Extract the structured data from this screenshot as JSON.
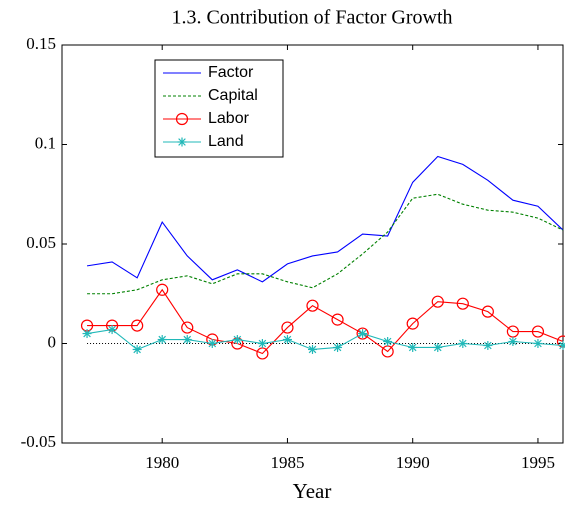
{
  "chart_data": {
    "type": "line",
    "title": "1.3. Contribution of Factor Growth",
    "xlabel": "Year",
    "x": [
      1977,
      1978,
      1979,
      1980,
      1981,
      1982,
      1983,
      1984,
      1985,
      1986,
      1987,
      1988,
      1989,
      1990,
      1991,
      1992,
      1993,
      1994,
      1995,
      1996
    ],
    "series": [
      {
        "name": "Factor",
        "color": "#0000ff",
        "linestyle": "solid",
        "marker": "none",
        "values": [
          0.039,
          0.041,
          0.033,
          0.061,
          0.044,
          0.032,
          0.037,
          0.031,
          0.04,
          0.044,
          0.046,
          0.055,
          0.054,
          0.081,
          0.094,
          0.09,
          0.082,
          0.072,
          0.069,
          0.057
        ]
      },
      {
        "name": "Capital",
        "color": "#008000",
        "linestyle": "dashed",
        "marker": "none",
        "values": [
          0.025,
          0.025,
          0.027,
          0.032,
          0.034,
          0.03,
          0.035,
          0.035,
          0.031,
          0.028,
          0.035,
          0.045,
          0.056,
          0.073,
          0.075,
          0.07,
          0.067,
          0.066,
          0.063,
          0.057
        ]
      },
      {
        "name": "Labor",
        "color": "#ff0000",
        "linestyle": "solid",
        "marker": "o",
        "values": [
          0.009,
          0.009,
          0.009,
          0.027,
          0.008,
          0.002,
          0.0,
          -0.005,
          0.008,
          0.019,
          0.012,
          0.005,
          -0.004,
          0.01,
          0.021,
          0.02,
          0.016,
          0.006,
          0.006,
          0.001
        ]
      },
      {
        "name": "Land",
        "color": "#20b8b8",
        "linestyle": "solid",
        "marker": "*",
        "values": [
          0.005,
          0.007,
          -0.003,
          0.002,
          0.002,
          0.0,
          0.002,
          0.0,
          0.002,
          -0.003,
          -0.002,
          0.005,
          0.001,
          -0.002,
          -0.002,
          0.0,
          -0.001,
          0.001,
          0.0,
          -0.001
        ]
      }
    ],
    "xlim": [
      1976,
      1996
    ],
    "xticks": [
      1980,
      1985,
      1990,
      1995
    ],
    "ylim": [
      -0.05,
      0.15
    ],
    "yticks": [
      -0.05,
      0,
      0.05,
      0.1,
      0.15
    ],
    "legend": "upper-left",
    "zero_line": true
  }
}
